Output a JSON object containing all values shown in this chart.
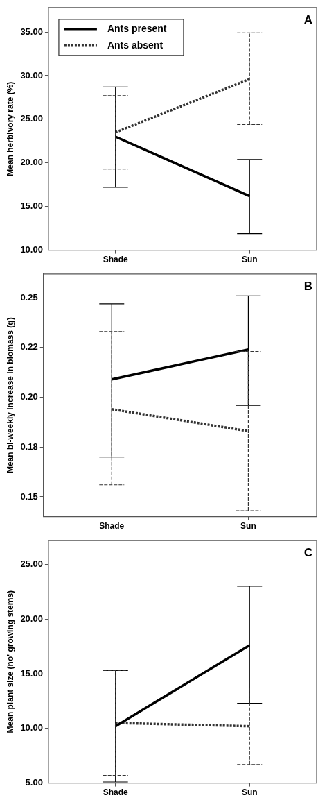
{
  "chart_data": [
    {
      "type": "line",
      "ylabel": "Mean herbivory rate (%)",
      "categories": [
        "Shade",
        "Sun"
      ],
      "annotations": [
        "A"
      ],
      "legend": "top left",
      "grid": false,
      "ylim": [
        10,
        37.8
      ],
      "yticks": [
        {
          "value": 10,
          "label": "10.00"
        },
        {
          "value": 15,
          "label": "15.00"
        },
        {
          "value": 20,
          "label": "20.00"
        },
        {
          "value": 25,
          "label": "25.00"
        },
        {
          "value": 30,
          "label": "30.00"
        },
        {
          "value": 35,
          "label": "35.00"
        }
      ],
      "series": [
        {
          "name": "Ants present",
          "color": "#000000",
          "line_style": "solid",
          "values": [
            23.0,
            16.2
          ],
          "errors": [
            [
              17.2,
              28.7
            ],
            [
              11.9,
              20.4
            ]
          ]
        },
        {
          "name": "Ants absent",
          "color": "#333333",
          "line_style": "dotted",
          "values": [
            23.5,
            29.6
          ],
          "errors": [
            [
              19.3,
              27.7
            ],
            [
              24.4,
              34.9
            ]
          ]
        }
      ]
    },
    {
      "type": "line",
      "ylabel": "Mean bi-weekly increase in biomass (g)",
      "categories": [
        "Shade",
        "Sun"
      ],
      "annotations": [
        "B"
      ],
      "grid": false,
      "ylim": [
        0.14,
        0.262
      ],
      "yticks": [
        {
          "value": 0.15,
          "label": "0.15"
        },
        {
          "value": 0.175,
          "label": "0.18"
        },
        {
          "value": 0.2,
          "label": "0.20"
        },
        {
          "value": 0.225,
          "label": "0.22"
        },
        {
          "value": 0.25,
          "label": "0.25"
        }
      ],
      "series": [
        {
          "color": "#000000",
          "line_style": "solid",
          "values": [
            0.209,
            0.224
          ],
          "errors": [
            [
              0.17,
              0.247
            ],
            [
              0.196,
              0.251
            ]
          ]
        },
        {
          "color": "#333333",
          "line_style": "dotted",
          "values": [
            0.194,
            0.183
          ],
          "errors": [
            [
              0.156,
              0.233
            ],
            [
              0.143,
              0.223
            ]
          ]
        }
      ]
    },
    {
      "type": "line",
      "ylabel": "Mean plant size (no' growing stems)",
      "categories": [
        "Shade",
        "Sun"
      ],
      "annotations": [
        "C"
      ],
      "grid": false,
      "ylim": [
        5,
        27.2
      ],
      "yticks": [
        {
          "value": 5,
          "label": "5.00"
        },
        {
          "value": 10,
          "label": "10.00"
        },
        {
          "value": 15,
          "label": "15.00"
        },
        {
          "value": 20,
          "label": "20.00"
        },
        {
          "value": 25,
          "label": "25.00"
        }
      ],
      "series": [
        {
          "color": "#000000",
          "line_style": "solid",
          "values": [
            10.2,
            17.6
          ],
          "errors": [
            [
              5.1,
              15.3
            ],
            [
              12.3,
              23.0
            ]
          ]
        },
        {
          "color": "#333333",
          "line_style": "dotted",
          "values": [
            10.5,
            10.2
          ],
          "errors": [
            [
              5.7,
              15.3
            ],
            [
              6.7,
              13.7
            ]
          ]
        }
      ]
    }
  ]
}
